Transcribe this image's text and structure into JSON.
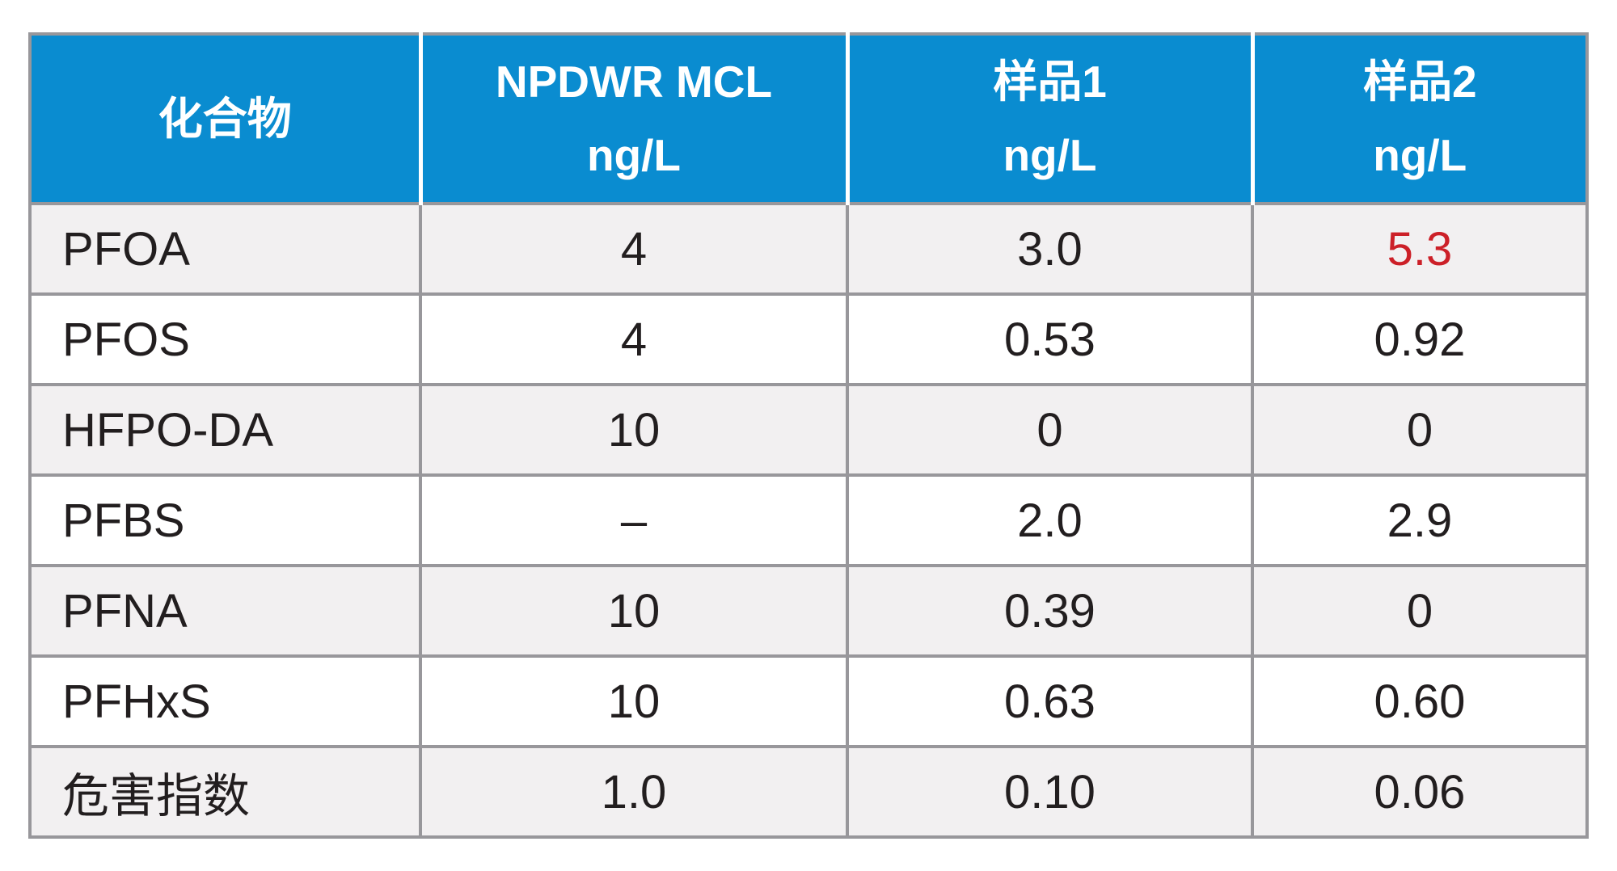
{
  "table": {
    "columns": [
      {
        "label": "化合物",
        "unit": ""
      },
      {
        "label": "NPDWR MCL",
        "unit": "ng/L"
      },
      {
        "label": "样品1",
        "unit": "ng/L"
      },
      {
        "label": "样品2",
        "unit": "ng/L"
      }
    ],
    "rows": [
      {
        "compound": "PFOA",
        "mcl": "4",
        "sample1": "3.0",
        "sample2": "5.3",
        "sample2_exceeds_limit": true
      },
      {
        "compound": "PFOS",
        "mcl": "4",
        "sample1": "0.53",
        "sample2": "0.92",
        "sample2_exceeds_limit": false
      },
      {
        "compound": "HFPO-DA",
        "mcl": "10",
        "sample1": "0",
        "sample2": "0",
        "sample2_exceeds_limit": false
      },
      {
        "compound": "PFBS",
        "mcl": "–",
        "sample1": "2.0",
        "sample2": "2.9",
        "sample2_exceeds_limit": false
      },
      {
        "compound": "PFNA",
        "mcl": "10",
        "sample1": "0.39",
        "sample2": "0",
        "sample2_exceeds_limit": false
      },
      {
        "compound": "PFHxS",
        "mcl": "10",
        "sample1": "0.63",
        "sample2": "0.60",
        "sample2_exceeds_limit": false
      },
      {
        "compound": "危害指数",
        "mcl": "1.0",
        "sample1": "0.10",
        "sample2": "0.06",
        "sample2_exceeds_limit": false
      }
    ],
    "colors": {
      "header_bg": "#0a8cd0",
      "header_text": "#ffffff",
      "row_alt_bg": "#f2f0f1",
      "row_bg": "#ffffff",
      "border": "#98979b",
      "body_text": "#221e1f",
      "exceed_value_text": "#cc2028"
    }
  },
  "chart_data": {
    "type": "table",
    "title": "",
    "columns": [
      "化合物",
      "NPDWR MCL ng/L",
      "样品1 ng/L",
      "样品2 ng/L"
    ],
    "rows": [
      [
        "PFOA",
        "4",
        "3.0",
        "5.3"
      ],
      [
        "PFOS",
        "4",
        "0.53",
        "0.92"
      ],
      [
        "HFPO-DA",
        "10",
        "0",
        "0"
      ],
      [
        "PFBS",
        "–",
        "2.0",
        "2.9"
      ],
      [
        "PFNA",
        "10",
        "0.39",
        "0"
      ],
      [
        "PFHxS",
        "10",
        "0.63",
        "0.60"
      ],
      [
        "危害指数",
        "1.0",
        "0.10",
        "0.06"
      ]
    ]
  }
}
